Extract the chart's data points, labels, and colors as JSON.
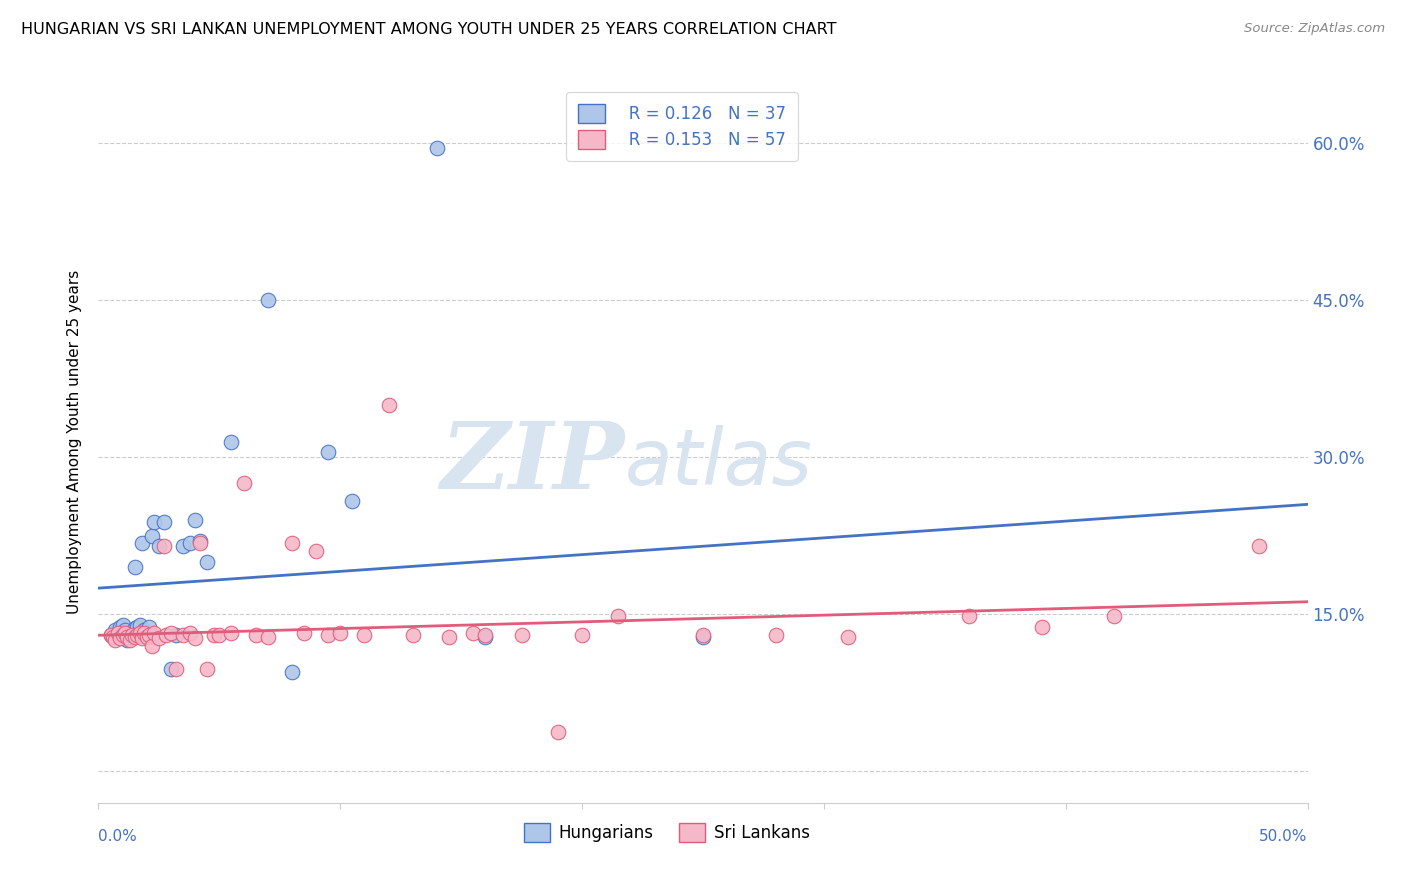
{
  "title": "HUNGARIAN VS SRI LANKAN UNEMPLOYMENT AMONG YOUTH UNDER 25 YEARS CORRELATION CHART",
  "source": "Source: ZipAtlas.com",
  "ylabel": "Unemployment Among Youth under 25 years",
  "xlim": [
    0.0,
    0.5
  ],
  "ylim": [
    -0.03,
    0.66
  ],
  "yticks": [
    0.0,
    0.15,
    0.3,
    0.45,
    0.6
  ],
  "ytick_labels": [
    "",
    "15.0%",
    "30.0%",
    "45.0%",
    "60.0%"
  ],
  "xticks": [
    0.0,
    0.1,
    0.2,
    0.3,
    0.4,
    0.5
  ],
  "legend_label1": "Hungarians",
  "legend_label2": "Sri Lankans",
  "hungarian_color": "#aec6e8",
  "srilanka_color": "#f5b8c8",
  "line_color_hungarian": "#4472c4",
  "line_color_srilanka": "#e05c7a",
  "watermark_text": "ZIPatlas",
  "hun_line_start": 0.175,
  "hun_line_end": 0.255,
  "sri_line_start": 0.13,
  "sri_line_end": 0.162,
  "hungarian_x": [
    0.005,
    0.007,
    0.008,
    0.009,
    0.01,
    0.01,
    0.011,
    0.012,
    0.013,
    0.014,
    0.015,
    0.015,
    0.016,
    0.017,
    0.018,
    0.019,
    0.02,
    0.021,
    0.022,
    0.023,
    0.025,
    0.027,
    0.03,
    0.032,
    0.035,
    0.038,
    0.04,
    0.042,
    0.045,
    0.055,
    0.07,
    0.08,
    0.095,
    0.105,
    0.14,
    0.16,
    0.25
  ],
  "hungarian_y": [
    0.13,
    0.135,
    0.13,
    0.138,
    0.132,
    0.14,
    0.135,
    0.125,
    0.128,
    0.133,
    0.195,
    0.137,
    0.138,
    0.14,
    0.218,
    0.135,
    0.13,
    0.138,
    0.225,
    0.238,
    0.215,
    0.238,
    0.098,
    0.13,
    0.215,
    0.218,
    0.24,
    0.22,
    0.2,
    0.315,
    0.45,
    0.095,
    0.305,
    0.258,
    0.595,
    0.128,
    0.128
  ],
  "srilanka_x": [
    0.005,
    0.006,
    0.007,
    0.008,
    0.009,
    0.01,
    0.011,
    0.012,
    0.013,
    0.014,
    0.015,
    0.016,
    0.017,
    0.018,
    0.019,
    0.02,
    0.021,
    0.022,
    0.023,
    0.025,
    0.027,
    0.028,
    0.03,
    0.032,
    0.035,
    0.038,
    0.04,
    0.042,
    0.045,
    0.048,
    0.05,
    0.055,
    0.06,
    0.065,
    0.07,
    0.08,
    0.085,
    0.09,
    0.095,
    0.1,
    0.11,
    0.12,
    0.13,
    0.145,
    0.155,
    0.16,
    0.175,
    0.19,
    0.2,
    0.215,
    0.25,
    0.28,
    0.31,
    0.36,
    0.39,
    0.42,
    0.48
  ],
  "srilanka_y": [
    0.13,
    0.128,
    0.125,
    0.132,
    0.127,
    0.13,
    0.132,
    0.128,
    0.125,
    0.13,
    0.128,
    0.13,
    0.132,
    0.127,
    0.132,
    0.128,
    0.13,
    0.12,
    0.132,
    0.127,
    0.215,
    0.13,
    0.132,
    0.098,
    0.13,
    0.132,
    0.127,
    0.218,
    0.098,
    0.13,
    0.13,
    0.132,
    0.275,
    0.13,
    0.128,
    0.218,
    0.132,
    0.21,
    0.13,
    0.132,
    0.13,
    0.35,
    0.13,
    0.128,
    0.132,
    0.13,
    0.13,
    0.038,
    0.13,
    0.148,
    0.13,
    0.13,
    0.128,
    0.148,
    0.138,
    0.148,
    0.215
  ]
}
